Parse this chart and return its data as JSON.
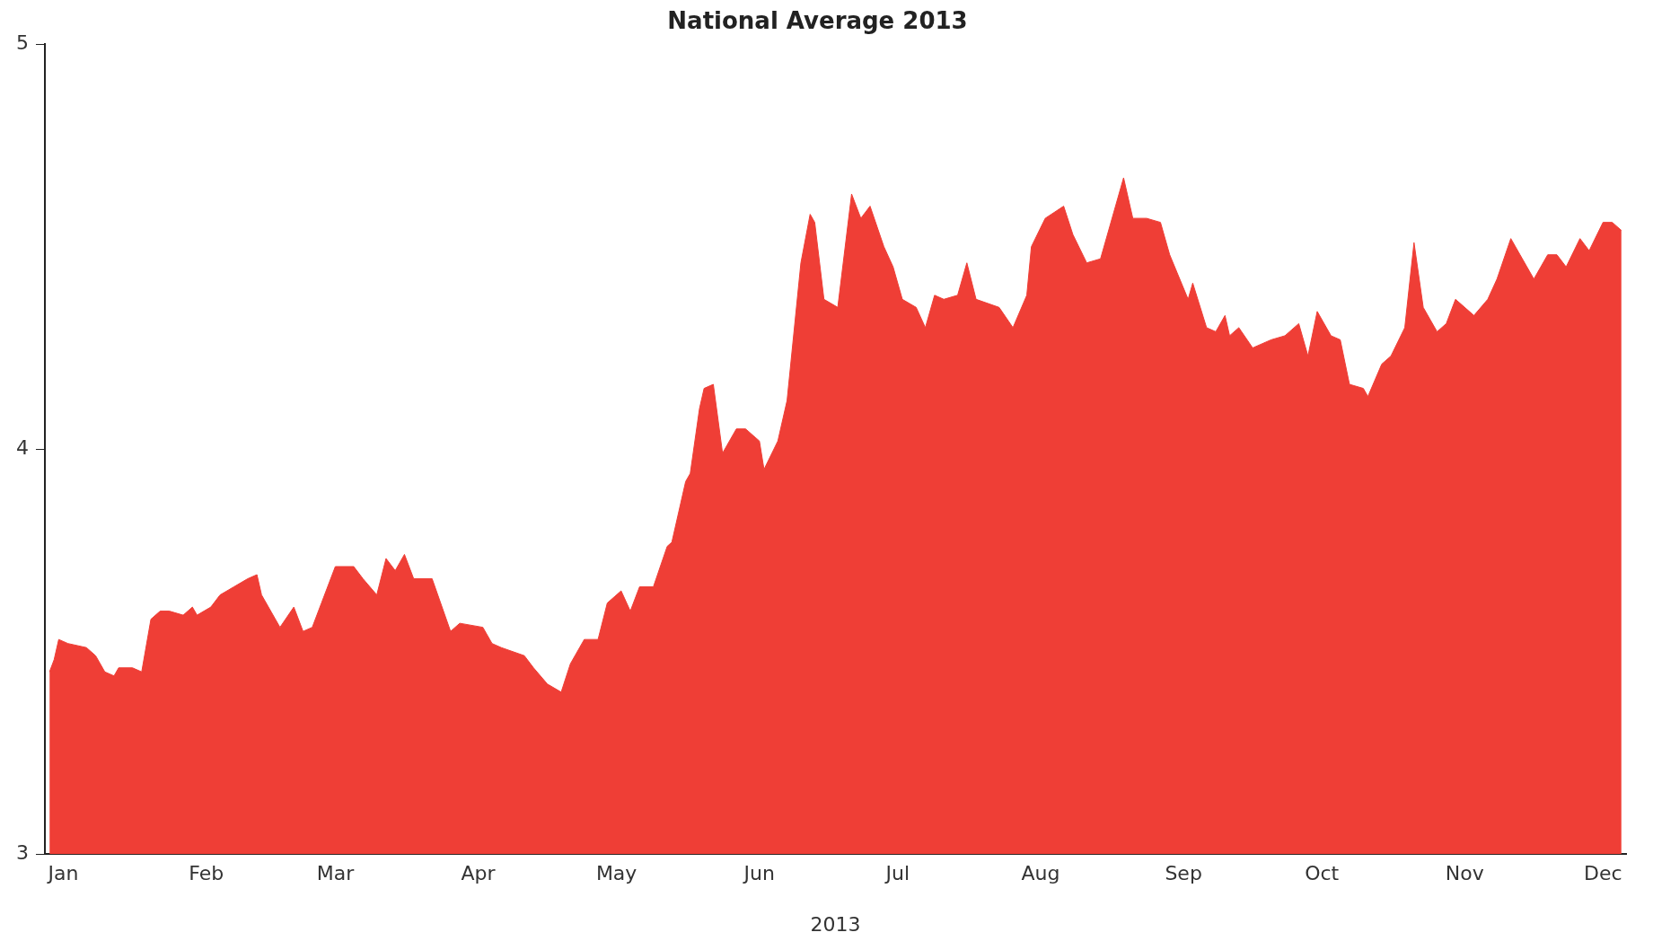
{
  "chart_data": {
    "type": "area",
    "title": "National Average 2013",
    "xlabel": "2013",
    "color": "#ef3e36",
    "x": [
      "2012-12-29",
      "2012-12-30",
      "2012-12-31",
      "2013-01-02",
      "2013-01-06",
      "2013-01-08",
      "2013-01-10",
      "2013-01-12",
      "2013-01-13",
      "2013-01-16",
      "2013-01-18",
      "2013-01-20",
      "2013-01-22",
      "2013-01-24",
      "2013-01-27",
      "2013-01-29",
      "2013-01-30",
      "2013-02-02",
      "2013-02-04",
      "2013-02-07",
      "2013-02-10",
      "2013-02-12",
      "2013-02-13",
      "2013-02-17",
      "2013-02-20",
      "2013-02-22",
      "2013-02-24",
      "2013-02-26",
      "2013-03-01",
      "2013-03-05",
      "2013-03-07",
      "2013-03-10",
      "2013-03-12",
      "2013-03-14",
      "2013-03-16",
      "2013-03-18",
      "2013-03-22",
      "2013-03-26",
      "2013-03-28",
      "2013-04-02",
      "2013-04-04",
      "2013-04-06",
      "2013-04-11",
      "2013-04-13",
      "2013-04-16",
      "2013-04-19",
      "2013-04-21",
      "2013-04-24",
      "2013-04-27",
      "2013-04-29",
      "2013-05-02",
      "2013-05-04",
      "2013-05-06",
      "2013-05-09",
      "2013-05-12",
      "2013-05-13",
      "2013-05-16",
      "2013-05-17",
      "2013-05-19",
      "2013-05-20",
      "2013-05-22",
      "2013-05-24",
      "2013-05-27",
      "2013-05-29",
      "2013-06-01",
      "2013-06-02",
      "2013-06-05",
      "2013-06-07",
      "2013-06-10",
      "2013-06-12",
      "2013-06-13",
      "2013-06-15",
      "2013-06-18",
      "2013-06-21",
      "2013-06-23",
      "2013-06-25",
      "2013-06-28",
      "2013-06-30",
      "2013-07-02",
      "2013-07-05",
      "2013-07-07",
      "2013-07-09",
      "2013-07-11",
      "2013-07-14",
      "2013-07-16",
      "2013-07-18",
      "2013-07-23",
      "2013-07-26",
      "2013-07-29",
      "2013-07-30",
      "2013-08-02",
      "2013-08-06",
      "2013-08-08",
      "2013-08-11",
      "2013-08-14",
      "2013-08-16",
      "2013-08-19",
      "2013-08-21",
      "2013-08-24",
      "2013-08-27",
      "2013-08-29",
      "2013-09-02",
      "2013-09-03",
      "2013-09-06",
      "2013-09-08",
      "2013-09-10",
      "2013-09-11",
      "2013-09-13",
      "2013-09-16",
      "2013-09-20",
      "2013-09-23",
      "2013-09-26",
      "2013-09-28",
      "2013-09-30",
      "2013-10-03",
      "2013-10-05",
      "2013-10-07",
      "2013-10-10",
      "2013-10-11",
      "2013-10-14",
      "2013-10-16",
      "2013-10-19",
      "2013-10-21",
      "2013-10-23",
      "2013-10-26",
      "2013-10-28",
      "2013-10-30",
      "2013-11-03",
      "2013-11-06",
      "2013-11-08",
      "2013-11-11",
      "2013-11-13",
      "2013-11-16",
      "2013-11-19",
      "2013-11-21",
      "2013-11-23",
      "2013-11-26",
      "2013-11-28",
      "2013-12-01",
      "2013-12-03",
      "2013-12-05"
    ],
    "values": [
      3.45,
      3.48,
      3.53,
      3.52,
      3.51,
      3.49,
      3.45,
      3.44,
      3.46,
      3.46,
      3.45,
      3.58,
      3.6,
      3.6,
      3.59,
      3.61,
      3.59,
      3.61,
      3.64,
      3.66,
      3.68,
      3.69,
      3.64,
      3.56,
      3.61,
      3.55,
      3.56,
      3.62,
      3.71,
      3.71,
      3.68,
      3.64,
      3.73,
      3.7,
      3.74,
      3.68,
      3.68,
      3.55,
      3.57,
      3.56,
      3.52,
      3.51,
      3.49,
      3.46,
      3.42,
      3.4,
      3.47,
      3.53,
      3.53,
      3.62,
      3.65,
      3.6,
      3.66,
      3.66,
      3.76,
      3.77,
      3.92,
      3.94,
      4.1,
      4.15,
      4.16,
      3.99,
      4.05,
      4.05,
      4.02,
      3.95,
      4.02,
      4.12,
      4.46,
      4.58,
      4.56,
      4.37,
      4.35,
      4.63,
      4.57,
      4.6,
      4.5,
      4.45,
      4.37,
      4.35,
      4.3,
      4.38,
      4.37,
      4.38,
      4.46,
      4.37,
      4.35,
      4.3,
      4.38,
      4.5,
      4.57,
      4.6,
      4.53,
      4.46,
      4.47,
      4.55,
      4.67,
      4.57,
      4.57,
      4.56,
      4.48,
      4.37,
      4.41,
      4.3,
      4.29,
      4.33,
      4.28,
      4.3,
      4.25,
      4.27,
      4.28,
      4.31,
      4.23,
      4.34,
      4.28,
      4.27,
      4.16,
      4.15,
      4.13,
      4.21,
      4.23,
      4.3,
      4.51,
      4.35,
      4.29,
      4.31,
      4.37,
      4.33,
      4.37,
      4.42,
      4.52,
      4.48,
      4.42,
      4.48,
      4.48,
      4.45,
      4.52,
      4.49,
      4.56,
      4.56,
      4.54
    ],
    "xlim": [
      "2012-12-28",
      "2013-12-06"
    ],
    "xticks": [
      {
        "value": "2013-01-01",
        "label": "Jan"
      },
      {
        "value": "2013-02-01",
        "label": "Feb"
      },
      {
        "value": "2013-03-01",
        "label": "Mar"
      },
      {
        "value": "2013-04-01",
        "label": "Apr"
      },
      {
        "value": "2013-05-01",
        "label": "May"
      },
      {
        "value": "2013-06-01",
        "label": "Jun"
      },
      {
        "value": "2013-07-01",
        "label": "Jul"
      },
      {
        "value": "2013-08-01",
        "label": "Aug"
      },
      {
        "value": "2013-09-01",
        "label": "Sep"
      },
      {
        "value": "2013-10-01",
        "label": "Oct"
      },
      {
        "value": "2013-11-01",
        "label": "Nov"
      },
      {
        "value": "2013-12-01",
        "label": "Dec"
      }
    ],
    "ylim": [
      3,
      5
    ],
    "yticks": [
      3,
      4,
      5
    ]
  }
}
